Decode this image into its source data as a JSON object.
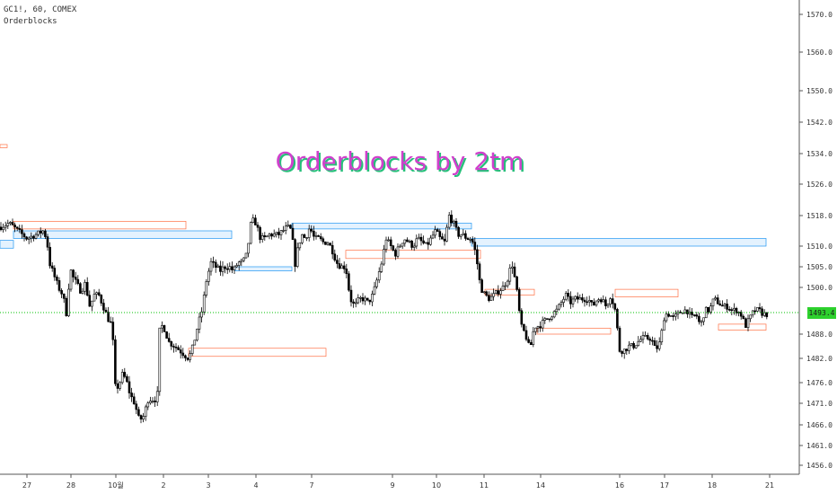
{
  "header": {
    "symbol_line": "GC1!, 60, COMEX",
    "indicator_line": "Orderblocks"
  },
  "watermark": "Orderblocks by 2tm",
  "last_price_label": "1493.4",
  "colors": {
    "up": "#ffffff",
    "down": "#000000",
    "bull_zone": "#2196f3",
    "bear_zone": "#ff7043",
    "price_line": "#00c000",
    "watermark": "#d040cc",
    "watermark_shadow": "#27c07a"
  },
  "chart_data": {
    "type": "candlestick",
    "title": "",
    "ylim": [
      1451,
      1574
    ],
    "yticks": [
      1570,
      1560,
      1550,
      1542,
      1534,
      1526,
      1518,
      1510,
      1505,
      1500,
      1493.4,
      1488,
      1482,
      1476,
      1471,
      1466,
      1461,
      1456
    ],
    "x_ticks": [
      "27",
      "28",
      "10월",
      "2",
      "3",
      "4",
      "7",
      "9",
      "10",
      "11",
      "14",
      "16",
      "17",
      "18",
      "21"
    ],
    "last_price": 1493.4,
    "path_points": [
      [
        0,
        1515
      ],
      [
        10,
        1516
      ],
      [
        20,
        1514
      ],
      [
        30,
        1512
      ],
      [
        40,
        1513
      ],
      [
        48,
        1514
      ],
      [
        52,
        1512
      ],
      [
        55,
        1506
      ],
      [
        60,
        1503
      ],
      [
        65,
        1500
      ],
      [
        70,
        1498
      ],
      [
        74,
        1493
      ],
      [
        78,
        1505
      ],
      [
        80,
        1503
      ],
      [
        85,
        1501
      ],
      [
        90,
        1499
      ],
      [
        95,
        1501
      ],
      [
        100,
        1495
      ],
      [
        105,
        1498
      ],
      [
        110,
        1498
      ],
      [
        115,
        1495
      ],
      [
        120,
        1492
      ],
      [
        125,
        1490
      ],
      [
        128,
        1475
      ],
      [
        132,
        1475
      ],
      [
        136,
        1478
      ],
      [
        140,
        1477
      ],
      [
        145,
        1473
      ],
      [
        150,
        1471
      ],
      [
        155,
        1467
      ],
      [
        160,
        1468
      ],
      [
        165,
        1472
      ],
      [
        170,
        1472
      ],
      [
        175,
        1472
      ],
      [
        178,
        1490
      ],
      [
        182,
        1490
      ],
      [
        188,
        1486
      ],
      [
        195,
        1485
      ],
      [
        200,
        1484
      ],
      [
        205,
        1483
      ],
      [
        210,
        1482
      ],
      [
        215,
        1485
      ],
      [
        220,
        1490
      ],
      [
        225,
        1494
      ],
      [
        230,
        1502
      ],
      [
        235,
        1506
      ],
      [
        240,
        1505
      ],
      [
        245,
        1504
      ],
      [
        250,
        1505
      ],
      [
        255,
        1505
      ],
      [
        260,
        1504
      ],
      [
        265,
        1506
      ],
      [
        270,
        1506
      ],
      [
        275,
        1508
      ],
      [
        280,
        1517
      ],
      [
        285,
        1516
      ],
      [
        290,
        1512
      ],
      [
        295,
        1512
      ],
      [
        300,
        1513
      ],
      [
        305,
        1513
      ],
      [
        310,
        1513
      ],
      [
        315,
        1514
      ],
      [
        320,
        1515
      ],
      [
        325,
        1514
      ],
      [
        328,
        1505
      ],
      [
        332,
        1510
      ],
      [
        336,
        1513
      ],
      [
        340,
        1512
      ],
      [
        345,
        1515
      ],
      [
        350,
        1512
      ],
      [
        355,
        1512
      ],
      [
        360,
        1511
      ],
      [
        365,
        1511
      ],
      [
        370,
        1509
      ],
      [
        375,
        1506
      ],
      [
        380,
        1505
      ],
      [
        385,
        1505
      ],
      [
        390,
        1497
      ],
      [
        395,
        1495
      ],
      [
        400,
        1497
      ],
      [
        405,
        1497
      ],
      [
        410,
        1496
      ],
      [
        415,
        1498
      ],
      [
        420,
        1502
      ],
      [
        425,
        1506
      ],
      [
        430,
        1512
      ],
      [
        435,
        1510
      ],
      [
        440,
        1508
      ],
      [
        445,
        1510
      ],
      [
        450,
        1512
      ],
      [
        455,
        1511
      ],
      [
        460,
        1510
      ],
      [
        465,
        1512
      ],
      [
        470,
        1511
      ],
      [
        475,
        1510
      ],
      [
        480,
        1512
      ],
      [
        485,
        1514
      ],
      [
        490,
        1512
      ],
      [
        495,
        1511
      ],
      [
        500,
        1518
      ],
      [
        505,
        1516
      ],
      [
        510,
        1513
      ],
      [
        515,
        1513
      ],
      [
        520,
        1512
      ],
      [
        525,
        1512
      ],
      [
        530,
        1508
      ],
      [
        535,
        1500
      ],
      [
        540,
        1498
      ],
      [
        545,
        1497
      ],
      [
        550,
        1498
      ],
      [
        555,
        1499
      ],
      [
        560,
        1500
      ],
      [
        565,
        1502
      ],
      [
        570,
        1506
      ],
      [
        575,
        1500
      ],
      [
        580,
        1490
      ],
      [
        585,
        1488
      ],
      [
        590,
        1484
      ],
      [
        595,
        1490
      ],
      [
        600,
        1490
      ],
      [
        605,
        1491
      ],
      [
        610,
        1492
      ],
      [
        615,
        1493
      ],
      [
        620,
        1494
      ],
      [
        625,
        1496
      ],
      [
        630,
        1498
      ],
      [
        635,
        1496
      ],
      [
        640,
        1497
      ],
      [
        645,
        1497
      ],
      [
        650,
        1497
      ],
      [
        655,
        1497
      ],
      [
        660,
        1495
      ],
      [
        665,
        1497
      ],
      [
        670,
        1497
      ],
      [
        675,
        1495
      ],
      [
        680,
        1498
      ],
      [
        685,
        1494
      ],
      [
        690,
        1484
      ],
      [
        695,
        1484
      ],
      [
        700,
        1485
      ],
      [
        705,
        1485
      ],
      [
        710,
        1486
      ],
      [
        715,
        1487
      ],
      [
        720,
        1487
      ],
      [
        725,
        1487
      ],
      [
        730,
        1484
      ],
      [
        735,
        1486
      ],
      [
        740,
        1493
      ],
      [
        745,
        1493
      ],
      [
        750,
        1492
      ],
      [
        755,
        1493
      ],
      [
        760,
        1494
      ],
      [
        765,
        1494
      ],
      [
        770,
        1492
      ],
      [
        775,
        1493
      ],
      [
        780,
        1490
      ],
      [
        785,
        1494
      ],
      [
        790,
        1494
      ],
      [
        795,
        1497
      ],
      [
        800,
        1496
      ],
      [
        805,
        1495
      ],
      [
        810,
        1495
      ],
      [
        815,
        1494
      ],
      [
        820,
        1494
      ],
      [
        825,
        1493
      ],
      [
        830,
        1490
      ],
      [
        835,
        1492
      ],
      [
        840,
        1494
      ],
      [
        845,
        1494
      ],
      [
        850,
        1493
      ],
      [
        854,
        1493
      ]
    ],
    "zones": [
      {
        "kind": "bull",
        "from": 0,
        "to": 15,
        "low": 1509.5,
        "high": 1511.5
      },
      {
        "kind": "bull",
        "from": 15,
        "to": 258,
        "low": 1512,
        "high": 1514
      },
      {
        "kind": "bull",
        "from": 325,
        "to": 525,
        "low": 1514.5,
        "high": 1516
      },
      {
        "kind": "bull",
        "from": 262,
        "to": 325,
        "low": 1504,
        "high": 1505
      },
      {
        "kind": "bull",
        "from": 525,
        "to": 853,
        "low": 1510,
        "high": 1512
      },
      {
        "kind": "bear",
        "from": 15,
        "to": 207,
        "low": 1514.5,
        "high": 1516.5
      },
      {
        "kind": "bear",
        "from": 0,
        "to": 8,
        "low": 1535.5,
        "high": 1536.3
      },
      {
        "kind": "bear",
        "from": 210,
        "to": 363,
        "low": 1482.5,
        "high": 1484.5
      },
      {
        "kind": "bear",
        "from": 385,
        "to": 535,
        "low": 1507,
        "high": 1509
      },
      {
        "kind": "bear",
        "from": 540,
        "to": 595,
        "low": 1498,
        "high": 1499.5
      },
      {
        "kind": "bear",
        "from": 598,
        "to": 680,
        "low": 1488,
        "high": 1489.5
      },
      {
        "kind": "bear",
        "from": 685,
        "to": 755,
        "low": 1497.5,
        "high": 1499.5
      },
      {
        "kind": "bear",
        "from": 800,
        "to": 853,
        "low": 1489,
        "high": 1490.5
      }
    ]
  }
}
